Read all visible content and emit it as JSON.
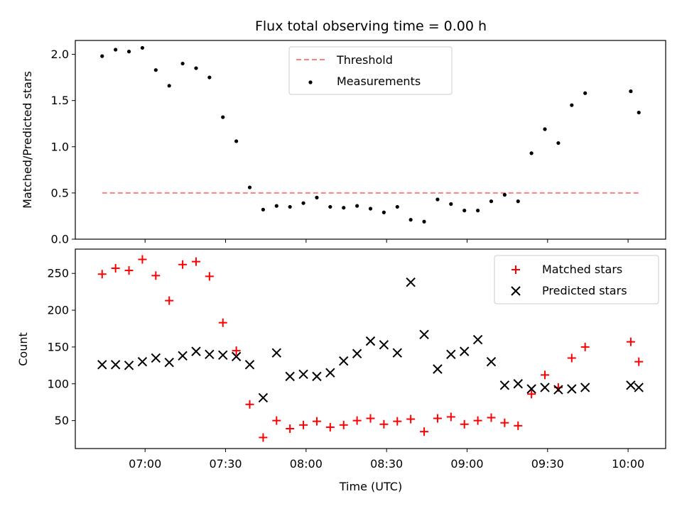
{
  "chart_data": [
    {
      "type": "scatter",
      "title": "Flux total observing time = 0.00 h",
      "xlabel": "",
      "ylabel": "Matched/Predicted stars",
      "ylim": [
        0,
        2.15
      ],
      "xlim": [
        "06:34",
        "10:14"
      ],
      "yticks": [
        "0.0",
        "0.5",
        "1.0",
        "1.5",
        "2.0"
      ],
      "grid": false,
      "legend_position": "top-center",
      "series": [
        {
          "name": "Threshold",
          "kind": "dashed-line",
          "color": "#ff7f7f",
          "x": [
            "06:44",
            "10:04"
          ],
          "y": [
            0.5,
            0.5
          ]
        },
        {
          "name": "Measurements",
          "kind": "points",
          "color": "#000000",
          "x": [
            "06:44",
            "06:49",
            "06:54",
            "06:59",
            "07:04",
            "07:09",
            "07:14",
            "07:19",
            "07:24",
            "07:29",
            "07:34",
            "07:39",
            "07:44",
            "07:49",
            "07:54",
            "07:59",
            "08:04",
            "08:09",
            "08:14",
            "08:19",
            "08:24",
            "08:29",
            "08:34",
            "08:39",
            "08:44",
            "08:49",
            "08:54",
            "08:59",
            "09:04",
            "09:09",
            "09:14",
            "09:19",
            "09:24",
            "09:29",
            "09:34",
            "09:39",
            "09:44",
            "10:01",
            "10:04"
          ],
          "y": [
            1.98,
            2.05,
            2.03,
            2.07,
            1.83,
            1.66,
            1.9,
            1.85,
            1.75,
            1.32,
            1.06,
            0.56,
            0.32,
            0.36,
            0.35,
            0.39,
            0.45,
            0.35,
            0.34,
            0.36,
            0.33,
            0.29,
            0.35,
            0.21,
            0.19,
            0.43,
            0.38,
            0.31,
            0.31,
            0.41,
            0.48,
            0.41,
            0.93,
            1.19,
            1.04,
            1.45,
            1.58,
            1.6,
            1.37
          ]
        }
      ]
    },
    {
      "type": "scatter",
      "title": "",
      "xlabel": "Time (UTC)",
      "ylabel": "Count",
      "ylim": [
        12,
        283
      ],
      "xlim": [
        "06:34",
        "10:14"
      ],
      "xticks": [
        "07:00",
        "07:30",
        "08:00",
        "08:30",
        "09:00",
        "09:30",
        "10:00"
      ],
      "yticks": [
        "50",
        "100",
        "150",
        "200",
        "250"
      ],
      "grid": false,
      "legend_position": "top-right",
      "series": [
        {
          "name": "Matched stars",
          "kind": "plus",
          "color": "#ff0000",
          "x": [
            "06:44",
            "06:49",
            "06:54",
            "06:59",
            "07:04",
            "07:09",
            "07:14",
            "07:19",
            "07:24",
            "07:29",
            "07:34",
            "07:39",
            "07:44",
            "07:49",
            "07:54",
            "07:59",
            "08:04",
            "08:09",
            "08:14",
            "08:19",
            "08:24",
            "08:29",
            "08:34",
            "08:39",
            "08:44",
            "08:49",
            "08:54",
            "08:59",
            "09:04",
            "09:09",
            "09:14",
            "09:19",
            "09:24",
            "09:29",
            "09:34",
            "09:39",
            "09:44",
            "10:01",
            "10:04"
          ],
          "y": [
            249,
            257,
            254,
            269,
            247,
            213,
            262,
            266,
            246,
            183,
            145,
            72,
            27,
            50,
            39,
            44,
            49,
            41,
            44,
            50,
            53,
            45,
            49,
            52,
            35,
            53,
            55,
            45,
            50,
            54,
            47,
            43,
            86,
            112,
            95,
            135,
            150,
            157,
            130
          ]
        },
        {
          "name": "Predicted stars",
          "kind": "cross",
          "color": "#000000",
          "x": [
            "06:44",
            "06:49",
            "06:54",
            "06:59",
            "07:04",
            "07:09",
            "07:14",
            "07:19",
            "07:24",
            "07:29",
            "07:34",
            "07:39",
            "07:44",
            "07:49",
            "07:54",
            "07:59",
            "08:04",
            "08:09",
            "08:14",
            "08:19",
            "08:24",
            "08:29",
            "08:34",
            "08:39",
            "08:44",
            "08:49",
            "08:54",
            "08:59",
            "09:04",
            "09:09",
            "09:14",
            "09:19",
            "09:24",
            "09:29",
            "09:34",
            "09:39",
            "09:44",
            "10:01",
            "10:04"
          ],
          "y": [
            126,
            126,
            125,
            130,
            135,
            129,
            138,
            144,
            140,
            139,
            137,
            126,
            81,
            142,
            110,
            113,
            110,
            115,
            131,
            141,
            158,
            153,
            142,
            238,
            167,
            120,
            140,
            144,
            160,
            130,
            98,
            100,
            93,
            95,
            92,
            93,
            95,
            98,
            95
          ]
        }
      ]
    }
  ]
}
